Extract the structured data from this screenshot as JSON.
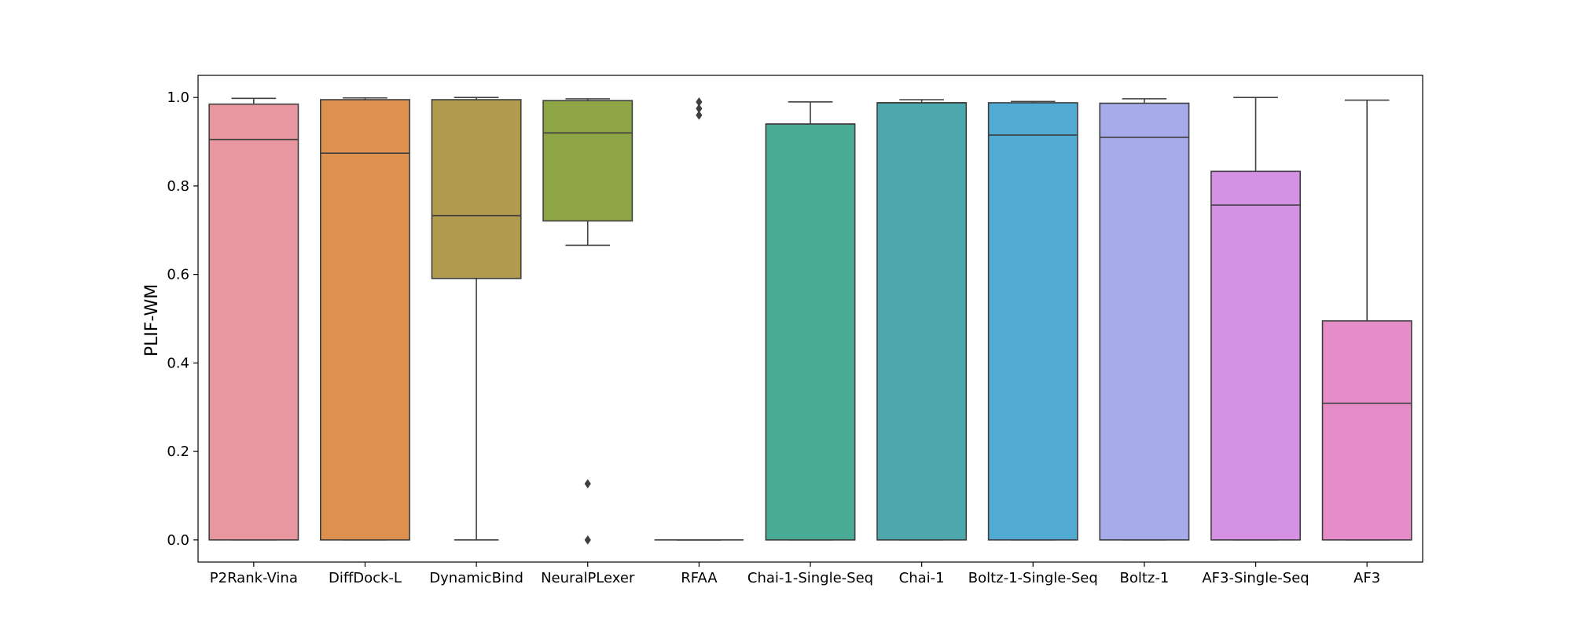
{
  "chart_data": {
    "type": "box",
    "title": "",
    "xlabel": "",
    "ylabel": "PLIF-WM",
    "ylim": [
      -0.05,
      1.05
    ],
    "yticks": [
      0.0,
      0.2,
      0.4,
      0.6,
      0.8,
      1.0
    ],
    "ytick_labels": [
      "0.0",
      "0.2",
      "0.4",
      "0.6",
      "0.8",
      "1.0"
    ],
    "grid": false,
    "categories": [
      "P2Rank-Vina",
      "DiffDock-L",
      "DynamicBind",
      "NeuralPLexer",
      "RFAA",
      "Chai-1-Single-Seq",
      "Chai-1",
      "Boltz-1-Single-Seq",
      "Boltz-1",
      "AF3-Single-Seq",
      "AF3"
    ],
    "boxes": [
      {
        "name": "P2Rank-Vina",
        "whisker_low": 0.0,
        "q1": 0.0,
        "median": 0.905,
        "q3": 0.985,
        "whisker_high": 0.998,
        "outliers": [],
        "color": "#e8969f"
      },
      {
        "name": "DiffDock-L",
        "whisker_low": 0.0,
        "q1": 0.0,
        "median": 0.874,
        "q3": 0.995,
        "whisker_high": 0.999,
        "outliers": [],
        "color": "#dc914e"
      },
      {
        "name": "DynamicBind",
        "whisker_low": 0.0,
        "q1": 0.591,
        "median": 0.733,
        "q3": 0.995,
        "whisker_high": 1.0,
        "outliers": [],
        "color": "#b19b4e"
      },
      {
        "name": "NeuralPLexer",
        "whisker_low": 0.666,
        "q1": 0.721,
        "median": 0.92,
        "q3": 0.993,
        "whisker_high": 0.997,
        "outliers": [
          0.127,
          0.0
        ],
        "color": "#8da545"
      },
      {
        "name": "RFAA",
        "whisker_low": 0.0,
        "q1": 0.0,
        "median": 0.0,
        "q3": 0.0,
        "whisker_high": 0.0,
        "outliers": [
          0.99,
          0.975,
          0.96
        ],
        "color": "#55ad7f"
      },
      {
        "name": "Chai-1-Single-Seq",
        "whisker_low": 0.0,
        "q1": 0.0,
        "median": 0.94,
        "q3": 0.94,
        "whisker_high": 0.99,
        "outliers": [],
        "color": "#4aab97"
      },
      {
        "name": "Chai-1",
        "whisker_low": 0.0,
        "q1": 0.0,
        "median": 0.988,
        "q3": 0.988,
        "whisker_high": 0.995,
        "outliers": [],
        "color": "#4ca8ad"
      },
      {
        "name": "Boltz-1-Single-Seq",
        "whisker_low": 0.0,
        "q1": 0.0,
        "median": 0.915,
        "q3": 0.988,
        "whisker_high": 0.991,
        "outliers": [],
        "color": "#52abd2"
      },
      {
        "name": "Boltz-1",
        "whisker_low": 0.0,
        "q1": 0.0,
        "median": 0.91,
        "q3": 0.987,
        "whisker_high": 0.997,
        "outliers": [],
        "color": "#a8abea"
      },
      {
        "name": "AF3-Single-Seq",
        "whisker_low": 0.0,
        "q1": 0.0,
        "median": 0.757,
        "q3": 0.833,
        "whisker_high": 1.0,
        "outliers": [],
        "color": "#d592e5"
      },
      {
        "name": "AF3",
        "whisker_low": 0.0,
        "q1": 0.0,
        "median": 0.309,
        "q3": 0.495,
        "whisker_high": 0.994,
        "outliers": [],
        "color": "#e68dc9"
      }
    ]
  }
}
